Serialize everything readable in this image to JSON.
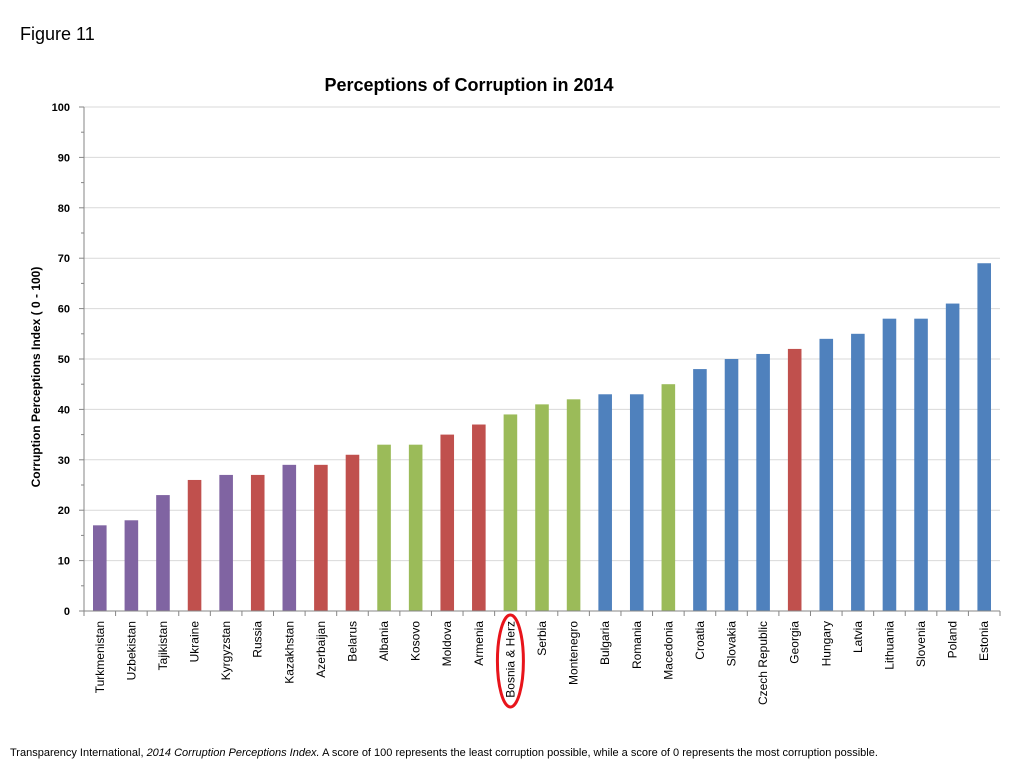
{
  "figure_label": "Figure 11",
  "colors": {
    "purple": "#8064a2",
    "red": "#c0504d",
    "green": "#9bbb59",
    "blue": "#4f81bd",
    "highlight": "#e8141b"
  },
  "chart_data": {
    "type": "bar",
    "title": "Perceptions of Corruption in 2014",
    "ylabel": "Corruption Perceptions Index ( 0 - 100)",
    "xlabel": "",
    "ylim": [
      0,
      100
    ],
    "yticks": [
      0,
      10,
      20,
      30,
      40,
      50,
      60,
      70,
      80,
      90,
      100
    ],
    "grid": true,
    "highlighted_category": "Bosnia & Herz",
    "categories": [
      "Turkmenistan",
      "Uzbekistan",
      "Tajikistan",
      "Ukraine",
      "Kyrgyzstan",
      "Russia",
      "Kazakhstan",
      "Azerbaijan",
      "Belarus",
      "Albania",
      "Kosovo",
      "Moldova",
      "Armenia",
      "Bosnia & Herz",
      "Serbia",
      "Montenegro",
      "Bulgaria",
      "Romania",
      "Macedonia",
      "Croatia",
      "Slovakia",
      "Czech Republic",
      "Georgia",
      "Hungary",
      "Latvia",
      "Lithuania",
      "Slovenia",
      "Poland",
      "Estonia"
    ],
    "values": [
      17,
      18,
      23,
      26,
      27,
      27,
      29,
      29,
      31,
      33,
      33,
      35,
      37,
      39,
      41,
      42,
      43,
      43,
      45,
      48,
      50,
      51,
      52,
      54,
      55,
      58,
      58,
      61,
      69
    ],
    "bar_colors": [
      "purple",
      "purple",
      "purple",
      "red",
      "purple",
      "red",
      "purple",
      "red",
      "red",
      "green",
      "green",
      "red",
      "red",
      "green",
      "green",
      "green",
      "blue",
      "blue",
      "green",
      "blue",
      "blue",
      "blue",
      "red",
      "blue",
      "blue",
      "blue",
      "blue",
      "blue",
      "blue"
    ]
  },
  "footnote": {
    "source": "Transparency International, ",
    "italic": "2014 Corruption Perceptions Index.",
    "text": " A score of 100 represents the least corruption possible, while a score of 0 represents the most corruption possible."
  }
}
